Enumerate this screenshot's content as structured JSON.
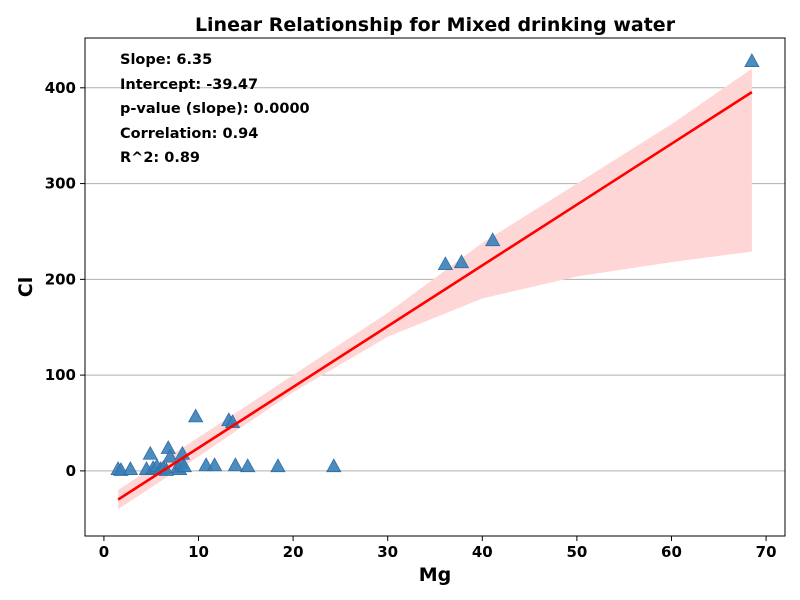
{
  "chart_data": {
    "type": "scatter",
    "title": "Linear Relationship for Mixed drinking water",
    "xlabel": "Mg",
    "ylabel": "Cl",
    "xlim": [
      -2,
      72
    ],
    "ylim": [
      -68,
      452
    ],
    "x_ticks": [
      0,
      10,
      20,
      30,
      40,
      50,
      60,
      70
    ],
    "y_ticks": [
      0,
      100,
      200,
      300,
      400
    ],
    "grid": "horizontal",
    "marker": "triangle",
    "colors": {
      "points": "#3a7fb8",
      "regression_line": "#ff0000",
      "confidence_band": "#ffd6d6",
      "grid": "#b0b0b0"
    },
    "annotations": [
      "Slope: 6.35",
      "Intercept: -39.47",
      "p-value (slope): 0.0000",
      "Correlation: 0.94",
      "R^2: 0.89"
    ],
    "regression": {
      "slope": 6.35,
      "intercept": -39.47,
      "x_range": [
        1.5,
        68.5
      ]
    },
    "confidence_band": [
      {
        "x": 1.5,
        "lower": -40,
        "upper": -20
      },
      {
        "x": 10,
        "lower": 15,
        "upper": 35
      },
      {
        "x": 20,
        "lower": 82,
        "upper": 100
      },
      {
        "x": 30,
        "lower": 140,
        "upper": 165
      },
      {
        "x": 40,
        "lower": 180,
        "upper": 238
      },
      {
        "x": 50,
        "lower": 203,
        "upper": 300
      },
      {
        "x": 60,
        "lower": 218,
        "upper": 362
      },
      {
        "x": 68.5,
        "lower": 229,
        "upper": 420
      }
    ],
    "points": [
      {
        "x": 1.5,
        "y": 2
      },
      {
        "x": 1.8,
        "y": 1
      },
      {
        "x": 2.8,
        "y": 2
      },
      {
        "x": 4.5,
        "y": 2
      },
      {
        "x": 4.9,
        "y": 18
      },
      {
        "x": 5.2,
        "y": 3
      },
      {
        "x": 5.6,
        "y": 5
      },
      {
        "x": 6.0,
        "y": 2
      },
      {
        "x": 6.3,
        "y": 3
      },
      {
        "x": 6.6,
        "y": 1
      },
      {
        "x": 6.8,
        "y": 24
      },
      {
        "x": 7.0,
        "y": 15
      },
      {
        "x": 7.8,
        "y": 4
      },
      {
        "x": 8.0,
        "y": 2
      },
      {
        "x": 8.2,
        "y": 8
      },
      {
        "x": 8.3,
        "y": 18
      },
      {
        "x": 8.5,
        "y": 5
      },
      {
        "x": 9.7,
        "y": 57
      },
      {
        "x": 10.8,
        "y": 6
      },
      {
        "x": 11.7,
        "y": 6
      },
      {
        "x": 13.2,
        "y": 53
      },
      {
        "x": 13.6,
        "y": 51
      },
      {
        "x": 13.9,
        "y": 6
      },
      {
        "x": 15.2,
        "y": 5
      },
      {
        "x": 18.4,
        "y": 5
      },
      {
        "x": 24.3,
        "y": 5
      },
      {
        "x": 36.1,
        "y": 216
      },
      {
        "x": 37.8,
        "y": 218
      },
      {
        "x": 41.1,
        "y": 241
      },
      {
        "x": 68.5,
        "y": 428
      }
    ]
  }
}
